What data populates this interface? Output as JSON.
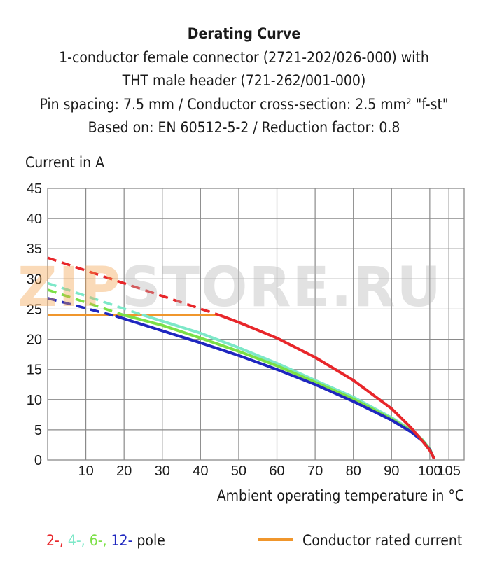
{
  "chart_data": {
    "type": "line",
    "title": "Derating Curve",
    "subtitle_lines": [
      "1-conductor female connector (2721-202/026-000) with",
      "THT male header (721-262/001-000)",
      "Pin spacing: 7.5 mm / Conductor cross-section: 2.5 mm² \"f-st\"",
      "Based on: EN 60512-5-2 / Reduction factor: 0.8"
    ],
    "ylabel": "Current in A",
    "xlabel": "Ambient operating temperature in °C",
    "xlim": [
      0,
      109
    ],
    "ylim": [
      0,
      45
    ],
    "x_ticks": [
      10,
      20,
      30,
      40,
      50,
      60,
      70,
      80,
      90,
      100,
      105
    ],
    "y_ticks": [
      0,
      5,
      10,
      15,
      20,
      25,
      30,
      35,
      40,
      45
    ],
    "grid": true,
    "series": [
      {
        "name": "2-",
        "color": "#e8262a",
        "dashed_points": [
          [
            0,
            33.5
          ],
          [
            45,
            24.0
          ]
        ],
        "solid_points": [
          [
            45,
            24.0
          ],
          [
            50,
            22.8
          ],
          [
            60,
            20.2
          ],
          [
            70,
            17.0
          ],
          [
            80,
            13.2
          ],
          [
            90,
            8.5
          ],
          [
            95,
            5.4
          ],
          [
            98,
            3.2
          ],
          [
            100,
            1.6
          ],
          [
            101,
            0.4
          ]
        ]
      },
      {
        "name": "4-",
        "color": "#7de8c8",
        "dashed_points": [
          [
            0,
            29.3
          ],
          [
            25,
            24.0
          ]
        ],
        "solid_points": [
          [
            25,
            24.0
          ],
          [
            30,
            23.0
          ],
          [
            40,
            21.0
          ],
          [
            50,
            18.6
          ],
          [
            60,
            16.0
          ],
          [
            70,
            13.2
          ],
          [
            80,
            10.4
          ],
          [
            90,
            7.0
          ],
          [
            95,
            5.0
          ],
          [
            98,
            3.4
          ],
          [
            100,
            1.8
          ],
          [
            101,
            0.4
          ]
        ]
      },
      {
        "name": "6-",
        "color": "#7be046",
        "dashed_points": [
          [
            0,
            28.2
          ],
          [
            20,
            24.0
          ]
        ],
        "solid_points": [
          [
            20,
            24.0
          ],
          [
            30,
            22.3
          ],
          [
            40,
            20.2
          ],
          [
            50,
            18.0
          ],
          [
            60,
            15.6
          ],
          [
            70,
            12.9
          ],
          [
            80,
            10.1
          ],
          [
            90,
            6.8
          ],
          [
            95,
            4.9
          ],
          [
            98,
            3.3
          ],
          [
            100,
            1.8
          ],
          [
            101,
            0.4
          ]
        ]
      },
      {
        "name": "12-",
        "color": "#1f27bf",
        "dashed_points": [
          [
            0,
            26.8
          ],
          [
            18,
            23.8
          ]
        ],
        "solid_points": [
          [
            18,
            23.8
          ],
          [
            30,
            21.4
          ],
          [
            40,
            19.4
          ],
          [
            50,
            17.3
          ],
          [
            60,
            15.0
          ],
          [
            70,
            12.5
          ],
          [
            80,
            9.7
          ],
          [
            90,
            6.6
          ],
          [
            95,
            4.7
          ],
          [
            98,
            3.2
          ],
          [
            100,
            1.7
          ],
          [
            101,
            0.4
          ]
        ]
      }
    ],
    "reference_line": {
      "name": "Conductor rated current",
      "color": "#f0962c",
      "y": 24,
      "x": [
        0,
        45
      ]
    }
  },
  "legend": {
    "poles": [
      {
        "text": "2-,",
        "color": "#e8262a"
      },
      {
        "text": "4-,",
        "color": "#7de8c8"
      },
      {
        "text": "6-,",
        "color": "#7be046"
      },
      {
        "text": "12-",
        "color": "#1f27bf"
      }
    ],
    "poles_suffix": "pole",
    "rated_label": "Conductor rated current",
    "rated_color": "#f0962c"
  },
  "watermark": {
    "part_a": "ZIP",
    "part_b": "STORE.RU"
  }
}
